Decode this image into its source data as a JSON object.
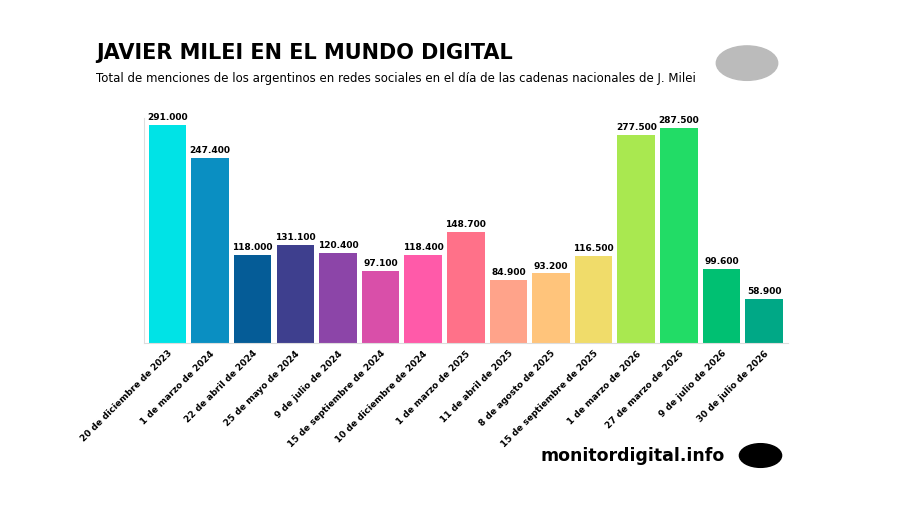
{
  "chart_data": {
    "type": "bar",
    "title": "JAVIER MILEI EN EL MUNDO DIGITAL",
    "subtitle": "Total de menciones de los argentinos en redes sociales en el día de las cadenas nacionales de J. Milei",
    "source": "monitordigital.info",
    "categories": [
      "20 de diciembre de 2023",
      "1 de marzo de 2024",
      "22 de abril de 2024",
      "25 de mayo de 2024",
      "9 de julio de 2024",
      "15 de septiembre de 2024",
      "10 de diciembre de 2024",
      "1 de marzo de 2025",
      "11 de abril de 2025",
      "8 de agosto de 2025",
      "15 de septiembre de 2025",
      "1 de marzo de 2026",
      "27 de marzo de 2026",
      "9 de julio de 2026",
      "30 de julio de 2026"
    ],
    "values": [
      291000,
      247400,
      118000,
      131100,
      120400,
      97100,
      118400,
      148700,
      84900,
      93200,
      116500,
      277500,
      287500,
      99600,
      58900
    ],
    "value_labels": [
      "291.000",
      "247.400",
      "118.000",
      "131.100",
      "120.400",
      "97.100",
      "118.400",
      "148.700",
      "84.900",
      "93.200",
      "116.500",
      "277.500",
      "287.500",
      "99.600",
      "58.900"
    ],
    "colors": [
      "#00e3e6",
      "#0a8fc2",
      "#055c97",
      "#3e3f8e",
      "#8c45a8",
      "#d94fa9",
      "#ff5aa9",
      "#ff7189",
      "#ffa38a",
      "#ffc47b",
      "#f0dc6a",
      "#a9e850",
      "#22dc66",
      "#00c072",
      "#00a886"
    ],
    "ylim": [
      0,
      300000
    ],
    "data_labels": true,
    "tick_labels": "x",
    "grid": false
  }
}
